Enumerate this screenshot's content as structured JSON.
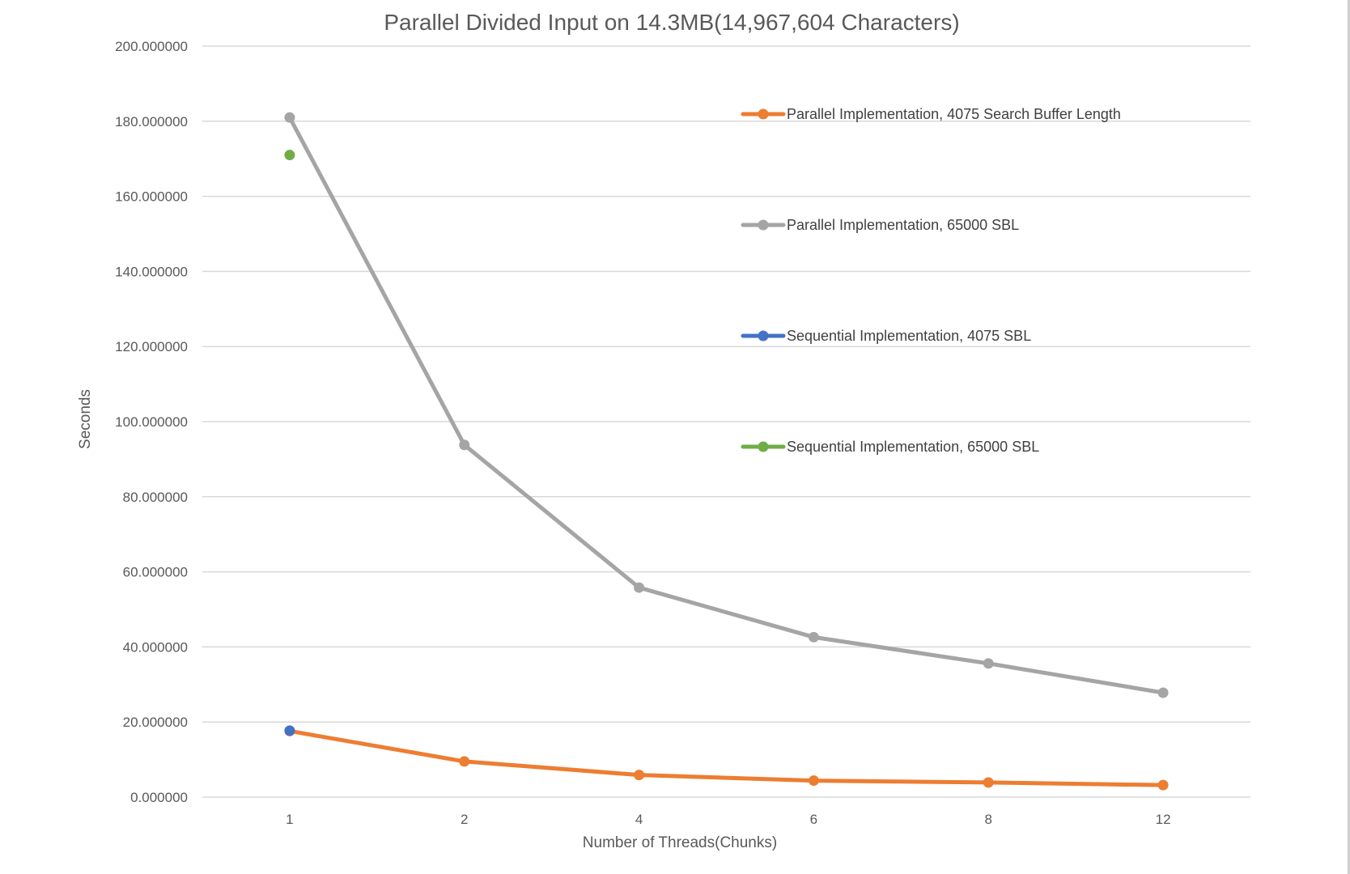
{
  "chart_data": {
    "type": "line",
    "title": "Parallel Divided Input on 14.3MB(14,967,604 Characters)",
    "xlabel": "Number of Threads(Chunks)",
    "ylabel": "Seconds",
    "categories": [
      "1",
      "2",
      "4",
      "6",
      "8",
      "12"
    ],
    "ylim": [
      0,
      200
    ],
    "yticks": [
      "0.000000",
      "20.000000",
      "40.000000",
      "60.000000",
      "80.000000",
      "100.000000",
      "120.000000",
      "140.000000",
      "160.000000",
      "180.000000",
      "200.000000"
    ],
    "grid": true,
    "legend_position": "top-right",
    "series": [
      {
        "name": "Parallel Implementation, 4075 Search Buffer Length",
        "color": "#ED7D31",
        "values": [
          17.6,
          9.5,
          5.9,
          4.4,
          3.9,
          3.2
        ]
      },
      {
        "name": "Parallel Implementation, 65000 SBL",
        "color": "#A5A5A5",
        "values": [
          181.0,
          93.8,
          55.8,
          42.6,
          35.6,
          27.8
        ]
      },
      {
        "name": "Sequential Implementation, 4075 SBL",
        "color": "#4472C4",
        "values": [
          17.7,
          null,
          null,
          null,
          null,
          null
        ]
      },
      {
        "name": "Sequential Implementation, 65000 SBL",
        "color": "#70AD47",
        "values": [
          171.0,
          null,
          null,
          null,
          null,
          null
        ]
      }
    ]
  }
}
